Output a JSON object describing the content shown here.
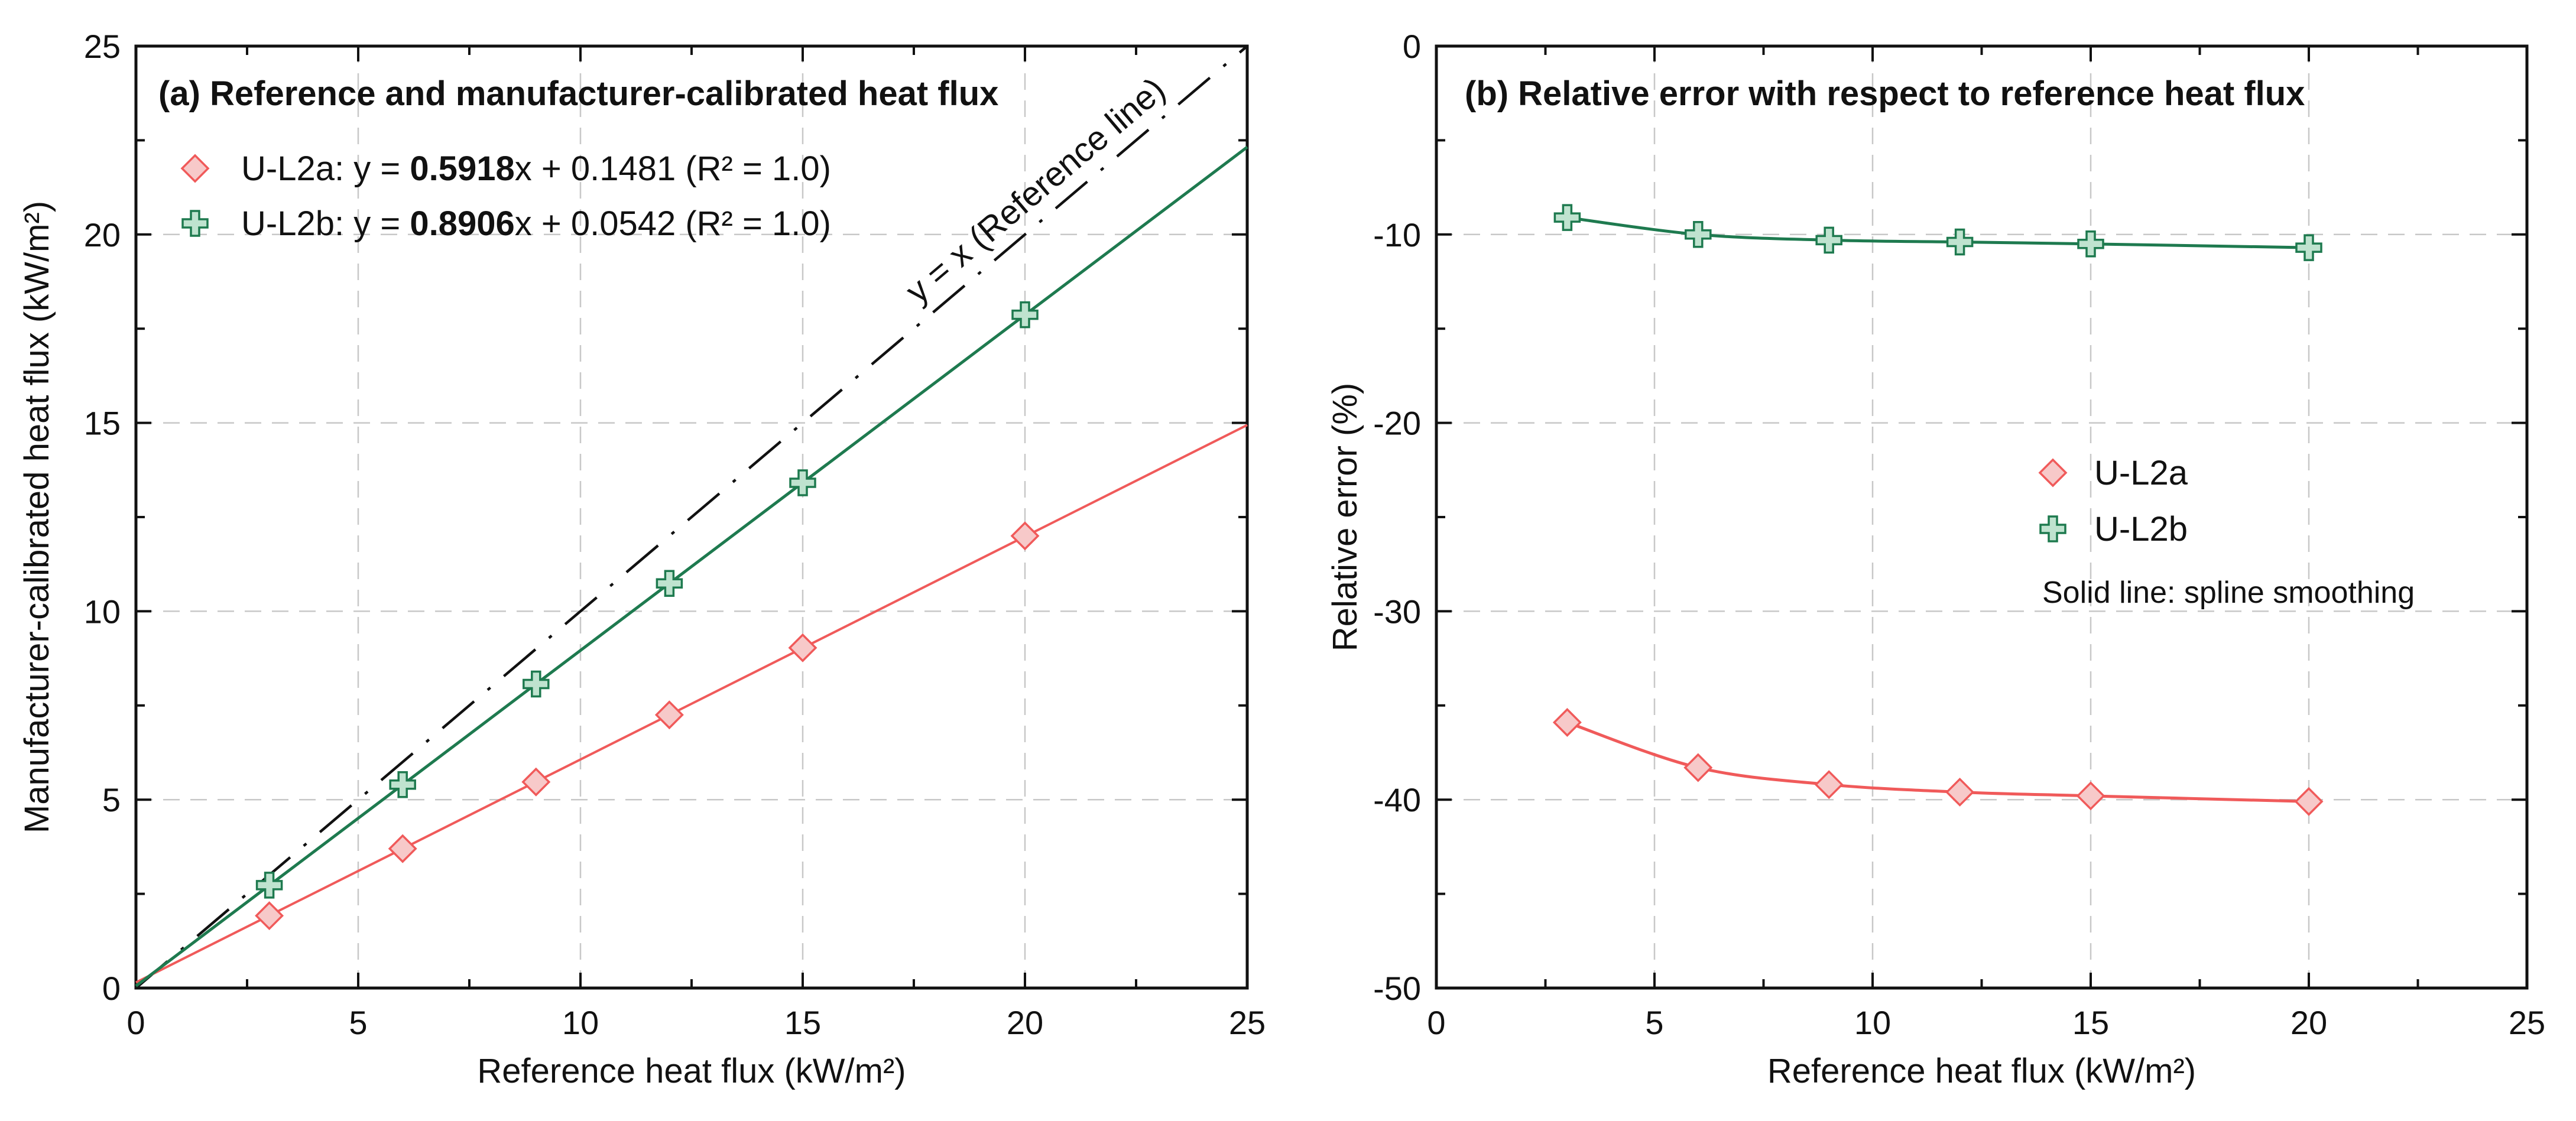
{
  "chart_data": [
    {
      "type": "scatter",
      "title": "(a) Reference and manufacturer-calibrated heat flux",
      "xlabel": "Reference heat flux (kW/m²)",
      "ylabel": "Manufacturer-calibrated heat flux (kW/m²)",
      "xlim": [
        0,
        25
      ],
      "ylim": [
        0,
        25
      ],
      "xticks": [
        "0",
        "5",
        "10",
        "15",
        "20",
        "25"
      ],
      "yticks": [
        "0",
        "5",
        "10",
        "15",
        "20",
        "25"
      ],
      "grid": true,
      "legend_position": "top-left",
      "reference_line": {
        "label": "y = x (Reference line)",
        "slope": 1,
        "intercept": 0
      },
      "series": [
        {
          "name": "U-L2a",
          "marker": "diamond",
          "color": "#f05a5a",
          "x": [
            3,
            6,
            9,
            12,
            15,
            20
          ],
          "y": [
            1.92,
            3.7,
            5.47,
            7.25,
            9.03,
            12.0
          ],
          "fit": {
            "slope": 0.5918,
            "intercept": 0.1481,
            "r2": "1.0"
          },
          "legend_prefix": ": y = ",
          "legend_slope": "0.5918",
          "legend_mid": "x + 0.1481",
          "legend_r2": "(R² = 1.0)"
        },
        {
          "name": "U-L2b",
          "marker": "plus",
          "color": "#1e7a4f",
          "x": [
            3,
            6,
            9,
            12,
            15,
            20
          ],
          "y": [
            2.73,
            5.4,
            8.07,
            10.74,
            13.41,
            17.87
          ],
          "fit": {
            "slope": 0.8906,
            "intercept": 0.0542,
            "r2": "1.0"
          },
          "legend_prefix": ": y = ",
          "legend_slope": "0.8906",
          "legend_mid": "x + 0.0542",
          "legend_r2": "(R² = 1.0)"
        }
      ]
    },
    {
      "type": "line",
      "title": "(b) Relative error with respect to reference heat flux",
      "xlabel": "Reference heat flux (kW/m²)",
      "ylabel": "Relative error (%)",
      "xlim": [
        0,
        25
      ],
      "ylim": [
        -50,
        0
      ],
      "xticks": [
        "0",
        "5",
        "10",
        "15",
        "20",
        "25"
      ],
      "yticks": [
        "0",
        "-10",
        "-20",
        "-30",
        "-40",
        "-50"
      ],
      "grid": true,
      "legend_position": "center",
      "note": "Solid line: spline smoothing",
      "series": [
        {
          "name": "U-L2a",
          "marker": "diamond",
          "color": "#f05a5a",
          "x": [
            3,
            6,
            9,
            12,
            15,
            20
          ],
          "y": [
            -35.9,
            -38.3,
            -39.2,
            -39.6,
            -39.8,
            -40.1
          ]
        },
        {
          "name": "U-L2b",
          "marker": "plus",
          "color": "#1e7a4f",
          "x": [
            3,
            6,
            9,
            12,
            15,
            20
          ],
          "y": [
            -9.1,
            -10.0,
            -10.3,
            -10.4,
            -10.5,
            -10.7
          ]
        }
      ]
    }
  ]
}
